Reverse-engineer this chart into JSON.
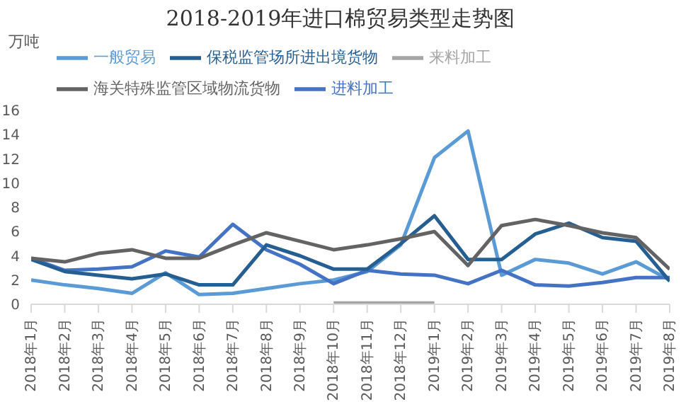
{
  "chart_data": {
    "type": "line",
    "title": "2018-2019年进口棉贸易类型走势图",
    "ylabel": "万吨",
    "categories": [
      "2018年1月",
      "2018年2月",
      "2018年3月",
      "2018年4月",
      "2018年5月",
      "2018年6月",
      "2018年7月",
      "2018年8月",
      "2018年9月",
      "2018年10月",
      "2018年11月",
      "2018年12月",
      "2019年1月",
      "2019年2月",
      "2019年3月",
      "2019年4月",
      "2019年5月",
      "2019年6月",
      "2019年7月",
      "2019年8月"
    ],
    "series": [
      {
        "name": "一般贸易",
        "color": "#5b9bd5",
        "values": [
          2.0,
          1.6,
          1.3,
          0.9,
          2.6,
          0.8,
          0.9,
          1.3,
          1.7,
          2.0,
          2.7,
          4.9,
          12.1,
          14.3,
          2.4,
          3.7,
          3.4,
          2.5,
          3.5,
          2.0
        ]
      },
      {
        "name": "来料加工",
        "color": "#a5a5a5",
        "values": [
          null,
          null,
          null,
          null,
          null,
          null,
          null,
          null,
          null,
          0.1,
          0.1,
          0.1,
          0.1,
          null,
          null,
          null,
          null,
          null,
          null,
          null
        ]
      },
      {
        "name": "进料加工",
        "color": "#4472c4",
        "values": [
          3.8,
          2.8,
          2.9,
          3.1,
          4.4,
          3.9,
          6.6,
          4.5,
          3.3,
          1.7,
          2.8,
          2.5,
          2.4,
          1.7,
          2.8,
          1.6,
          1.5,
          1.8,
          2.2,
          2.2
        ]
      },
      {
        "name": "保税监管场所进出境货物",
        "color": "#255e91",
        "values": [
          3.7,
          2.7,
          2.4,
          2.1,
          2.5,
          1.6,
          1.6,
          4.9,
          4.0,
          2.9,
          2.9,
          5.0,
          7.3,
          3.7,
          3.7,
          5.8,
          6.7,
          5.5,
          5.2,
          1.9
        ]
      },
      {
        "name": "海关特殊监管区域物流货物",
        "color": "#636363",
        "values": [
          3.8,
          3.5,
          4.2,
          4.5,
          3.8,
          3.8,
          4.9,
          5.9,
          5.2,
          4.5,
          4.9,
          5.4,
          6.0,
          3.2,
          6.5,
          7.0,
          6.5,
          5.9,
          5.5,
          2.9
        ]
      }
    ],
    "ylim": [
      0,
      16
    ],
    "yticks": [
      0,
      2,
      4,
      6,
      8,
      10,
      12,
      14,
      16
    ],
    "grid": false,
    "legend": "top",
    "marker": "none",
    "line_style": "solid"
  }
}
